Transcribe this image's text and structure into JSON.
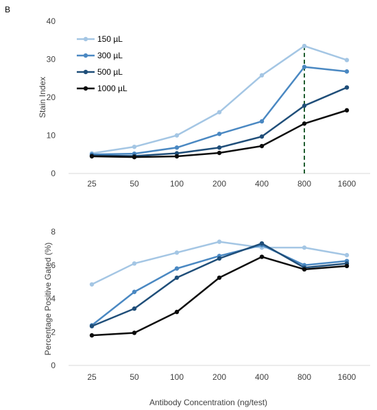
{
  "panel_label": "B",
  "shared_xlabel": "Antibody Concentration (ng/test)",
  "colors": {
    "150": "#a4c6e4",
    "300": "#4a88c2",
    "500": "#1f4e79",
    "1000": "#0b0b0b",
    "axis": "#d9d9d9",
    "reference": "#1e5c2e"
  },
  "chart_data": [
    {
      "type": "line",
      "title": "",
      "xlabel": "",
      "ylabel": "Stain Index",
      "categories": [
        "25",
        "50",
        "100",
        "200",
        "400",
        "800",
        "1600"
      ],
      "ylim": [
        0,
        40
      ],
      "yticks": [
        0,
        10,
        20,
        30,
        40
      ],
      "grid": false,
      "legend": "top-left",
      "reference_line": {
        "category": "800",
        "style": "dashed"
      },
      "series": [
        {
          "name": "150 µL",
          "values": [
            5.3,
            7.0,
            10.0,
            16.1,
            25.8,
            33.5,
            29.8
          ]
        },
        {
          "name": "300 µL",
          "values": [
            5.0,
            5.2,
            6.8,
            10.4,
            13.7,
            28.0,
            26.8
          ]
        },
        {
          "name": "500 µL",
          "values": [
            4.7,
            4.6,
            5.3,
            6.8,
            9.7,
            17.8,
            22.6
          ]
        },
        {
          "name": "1000 µL",
          "values": [
            4.5,
            4.3,
            4.5,
            5.4,
            7.2,
            13.1,
            16.6
          ]
        }
      ]
    },
    {
      "type": "line",
      "title": "",
      "xlabel": "Antibody Concentration (ng/test)",
      "ylabel": "Percentage Positive Gated (%)",
      "categories": [
        "25",
        "50",
        "100",
        "200",
        "400",
        "800",
        "1600"
      ],
      "ylim": [
        0,
        8
      ],
      "yticks": [
        0,
        2,
        4,
        6,
        8
      ],
      "grid": false,
      "legend": "none",
      "series": [
        {
          "name": "150 µL",
          "values": [
            4.85,
            6.1,
            6.75,
            7.4,
            7.05,
            7.05,
            6.6
          ]
        },
        {
          "name": "300 µL",
          "values": [
            2.4,
            4.4,
            5.8,
            6.55,
            7.2,
            6.0,
            6.25
          ]
        },
        {
          "name": "500 µL",
          "values": [
            2.35,
            3.4,
            5.25,
            6.4,
            7.3,
            5.85,
            6.1
          ]
        },
        {
          "name": "1000 µL",
          "values": [
            1.8,
            1.95,
            3.2,
            5.25,
            6.5,
            5.75,
            5.95
          ]
        }
      ]
    }
  ]
}
